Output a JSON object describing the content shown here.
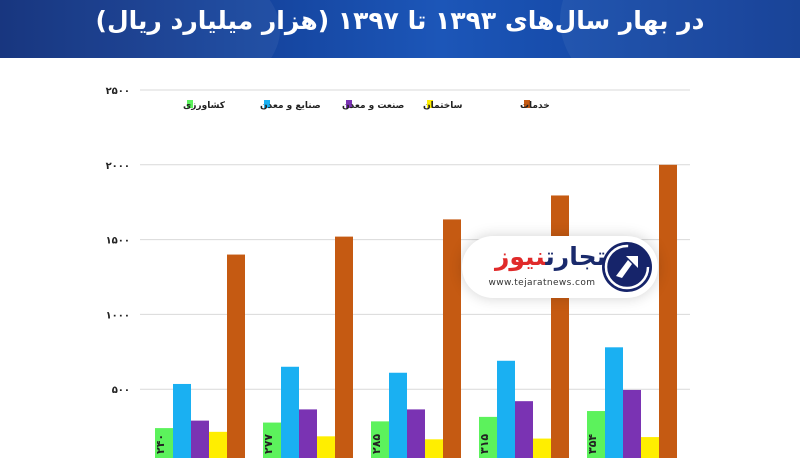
{
  "title": "در بهار سال‌های ۱۳۹۳ تا ۱۳۹۷ (هزار میلیارد ریال)",
  "logo": {
    "name_part1": "تجارت",
    "name_part2": "نیوز",
    "url": "www.tejaratnews.com"
  },
  "colors": {
    "header": "#1a4fa8",
    "agriculture": "#5cf25c",
    "mining_industry": "#1ab0f2",
    "industry_mining": "#7a33b3",
    "construction": "#ffee00",
    "services": "#c55a12"
  },
  "chart_data": {
    "type": "bar",
    "title": "در بهار سال‌های ۱۳۹۳ تا ۱۳۹۷ (هزار میلیارد ریال)",
    "categories": [
      "",
      "",
      "",
      "",
      ""
    ],
    "series": [
      {
        "name": "کشاورزی",
        "values": [
          240,
          277,
          285,
          315,
          354
        ],
        "value_labels": [
          "۲۴۰",
          "۲۷۷",
          "۲۸۵",
          "۳۱۵",
          "۳۵۴"
        ]
      },
      {
        "name": "صنایع و معدن",
        "values": [
          535,
          650,
          610,
          690,
          780
        ]
      },
      {
        "name": "صنعت و معدن",
        "values": [
          290,
          365,
          365,
          420,
          495
        ]
      },
      {
        "name": "ساختمان",
        "values": [
          215,
          185,
          165,
          170,
          180
        ]
      },
      {
        "name": "خدمات",
        "values": [
          1400,
          1520,
          1635,
          1795,
          2000
        ]
      }
    ],
    "yticks": [
      500,
      1000,
      1500,
      2000,
      2500
    ],
    "ytick_labels": [
      "۵۰۰",
      "۱۰۰۰",
      "۱۵۰۰",
      "۲۰۰۰",
      "۲۵۰۰"
    ],
    "ylim": [
      0,
      2500
    ],
    "legend_position": "top"
  }
}
